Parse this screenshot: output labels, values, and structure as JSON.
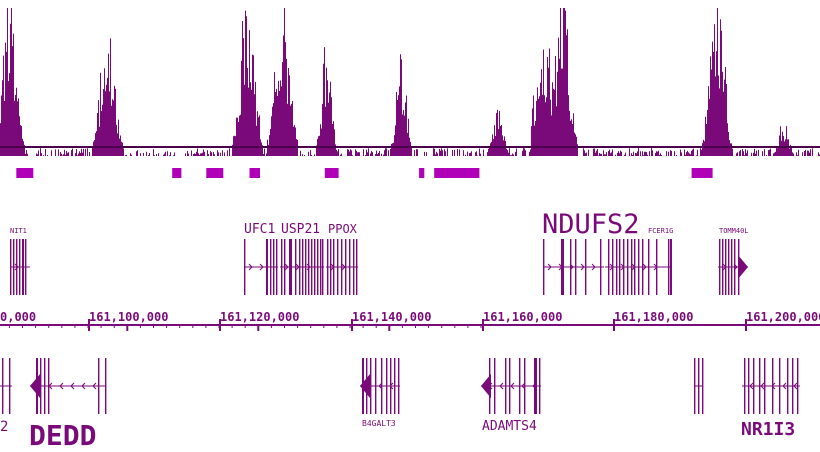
{
  "colors": {
    "track": "#7a0a7a",
    "peak_region": "#b000b8",
    "background": "#ffffff"
  },
  "signal_track": {
    "peak_regions_bp": [
      [
        161074200,
        161075600
      ],
      [
        161088100,
        161090700
      ],
      [
        161111900,
        161113300
      ],
      [
        161117100,
        161119700
      ],
      [
        161123700,
        161125300
      ],
      [
        161135200,
        161137300
      ],
      [
        161149600,
        161150400
      ],
      [
        161151900,
        161158800
      ],
      [
        161191200,
        161194400
      ]
    ]
  },
  "ruler": {
    "labels": [
      "0,000",
      "161,100,000",
      "161,120,000",
      "161,140,000",
      "161,160,000",
      "161,180,000",
      "161,200,000"
    ]
  },
  "genes_top": [
    {
      "name": "NIT1",
      "size": "small"
    },
    {
      "name": "UFC1",
      "size": "medium"
    },
    {
      "name": "USP21",
      "size": "medium"
    },
    {
      "name": "PPOX",
      "size": "medium"
    },
    {
      "name": "NDUFS2",
      "size": "large"
    },
    {
      "name": "FCER1G",
      "size": "small"
    },
    {
      "name": "TOMM40L",
      "size": "small"
    }
  ],
  "genes_bottom": [
    {
      "name": "2",
      "size": "medium"
    },
    {
      "name": "DEDD",
      "size": "xlarge"
    },
    {
      "name": "B4GALT3",
      "size": "small"
    },
    {
      "name": "ADAMTS4",
      "size": "medium"
    },
    {
      "name": "NR1I3",
      "size": "large"
    }
  ]
}
